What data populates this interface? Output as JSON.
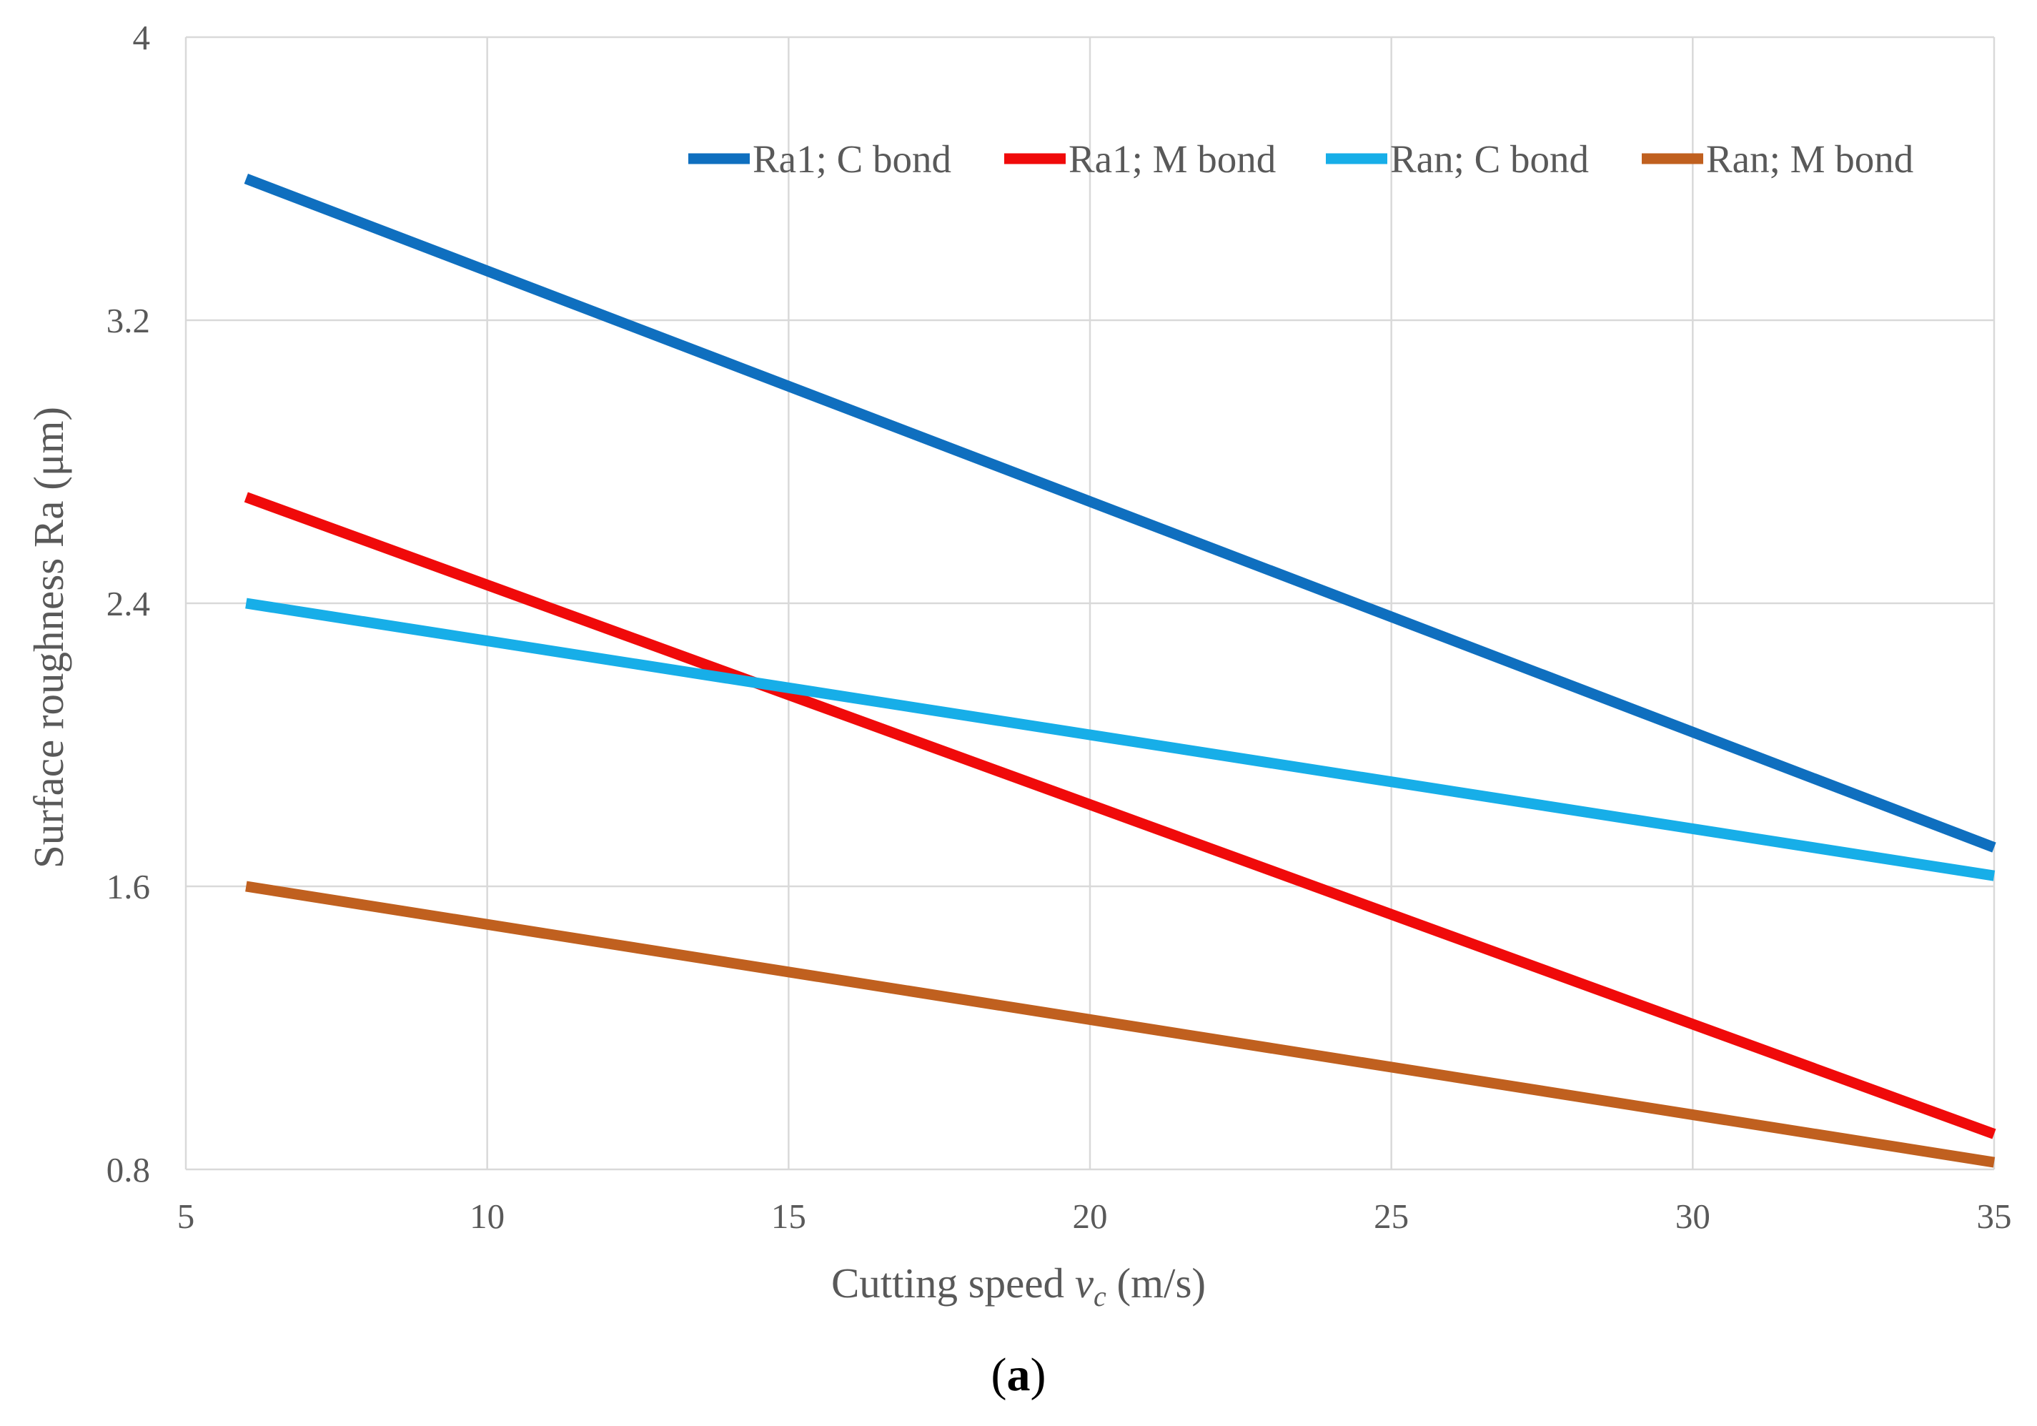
{
  "chart_data": {
    "type": "line",
    "xlabel_prefix": "Cutting speed ",
    "xlabel_var": "v",
    "xlabel_sub": "c",
    "xlabel_suffix": " (m/s)",
    "ylabel": "Surface roughness Ra (μm)",
    "xlim": [
      5,
      35
    ],
    "ylim": [
      0.8,
      4
    ],
    "x_ticks": [
      "5",
      "10",
      "15",
      "20",
      "25",
      "30",
      "35"
    ],
    "y_ticks": [
      "0.8",
      "1.6",
      "2.4",
      "3.2",
      "4"
    ],
    "grid": true,
    "legend_position": "top-right",
    "series": [
      {
        "name": "Ra1; C bond",
        "color": "#0F6FBF",
        "x": [
          6,
          35
        ],
        "y": [
          3.6,
          1.71
        ]
      },
      {
        "name": "Ra1; M bond",
        "color": "#F00A0A",
        "x": [
          6,
          35
        ],
        "y": [
          2.7,
          0.9
        ]
      },
      {
        "name": "Ran; C bond",
        "color": "#17AEE8",
        "x": [
          6,
          35
        ],
        "y": [
          2.4,
          1.63
        ]
      },
      {
        "name": "Ran; M bond",
        "color": "#C0601F",
        "x": [
          6,
          35
        ],
        "y": [
          1.6,
          0.82
        ]
      }
    ]
  },
  "caption": {
    "open": "(",
    "letter": "a",
    "close": ")"
  }
}
